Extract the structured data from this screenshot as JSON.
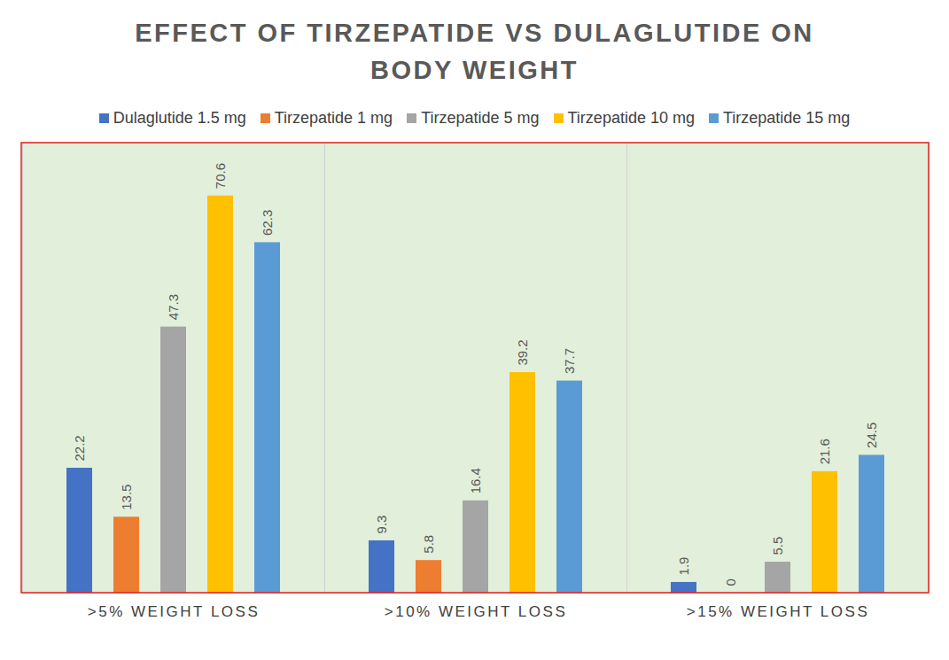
{
  "chart_data": {
    "type": "bar",
    "title": "EFFECT OF TIRZEPATIDE VS DULAGLUTIDE ON BODY WEIGHT",
    "categories": [
      ">5% WEIGHT LOSS",
      ">10% WEIGHT LOSS",
      ">15% WEIGHT LOSS"
    ],
    "series": [
      {
        "name": "Dulaglutide 1.5 mg",
        "color": "#4472c4",
        "values": [
          22.2,
          9.3,
          1.9
        ]
      },
      {
        "name": "Tirzepatide 1 mg",
        "color": "#ed7d31",
        "values": [
          13.5,
          5.8,
          0
        ]
      },
      {
        "name": "Tirzepatide 5 mg",
        "color": "#a5a5a5",
        "values": [
          47.3,
          16.4,
          5.5
        ]
      },
      {
        "name": "Tirzepatide 10 mg",
        "color": "#ffc000",
        "values": [
          70.6,
          39.2,
          21.6
        ]
      },
      {
        "name": "Tirzepatide 15 mg",
        "color": "#5b9bd5",
        "values": [
          62.3,
          37.7,
          24.5
        ]
      }
    ],
    "ylim": [
      0,
      80
    ],
    "yticks": [],
    "data_labels": true,
    "tick_labels": "x",
    "legend": "top"
  }
}
